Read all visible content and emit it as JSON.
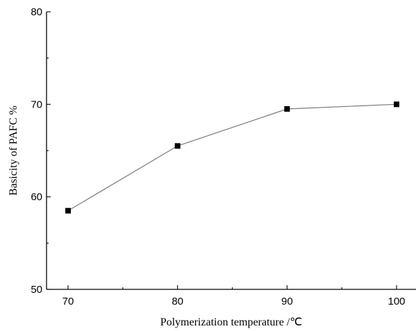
{
  "chart_data": {
    "type": "line",
    "title": "",
    "xlabel": "Polymerization temperature /℃",
    "ylabel": "Basicity of PAFC %",
    "x": [
      70,
      80,
      90,
      100
    ],
    "series": [
      {
        "values": [
          58.5,
          65.5,
          69.5,
          70.0
        ]
      }
    ],
    "xlim": [
      68,
      102
    ],
    "ylim": [
      50,
      80
    ],
    "xticks": [
      70,
      80,
      90,
      100
    ],
    "yticks": [
      50,
      60,
      70,
      80
    ],
    "x_tick_labels": [
      "70",
      "80",
      "90",
      "100"
    ],
    "y_tick_labels": [
      "50",
      "60",
      "70",
      "80"
    ],
    "grid": false,
    "legend": "none",
    "marker": "square",
    "line_color": "#7a7a7a",
    "marker_color": "#000000"
  }
}
